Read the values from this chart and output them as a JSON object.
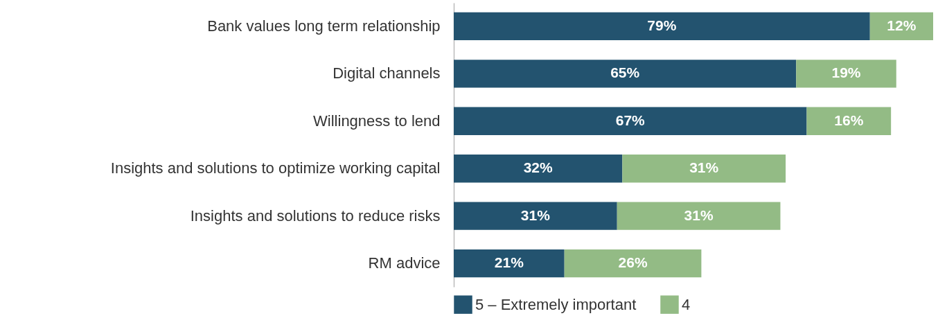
{
  "chart_data": {
    "type": "bar",
    "orientation": "horizontal",
    "stacked": true,
    "legend": "bottom",
    "categories": [
      "Bank values long term relationship",
      "Digital channels",
      "Willingness to lend",
      "Insights and solutions to optimize working capital",
      "Insights and solutions to reduce risks",
      "RM advice"
    ],
    "series": [
      {
        "name": "5 – Extremely important",
        "color": "#23536f",
        "values": [
          79,
          65,
          67,
          32,
          31,
          21
        ],
        "value_labels": [
          "79%",
          "65%",
          "67%",
          "32%",
          "31%",
          "21%"
        ]
      },
      {
        "name": "4",
        "color": "#93bb85",
        "values": [
          12,
          19,
          16,
          31,
          31,
          26
        ],
        "value_labels": [
          "12%",
          "19%",
          "16%",
          "31%",
          "31%",
          "26%"
        ]
      }
    ]
  }
}
